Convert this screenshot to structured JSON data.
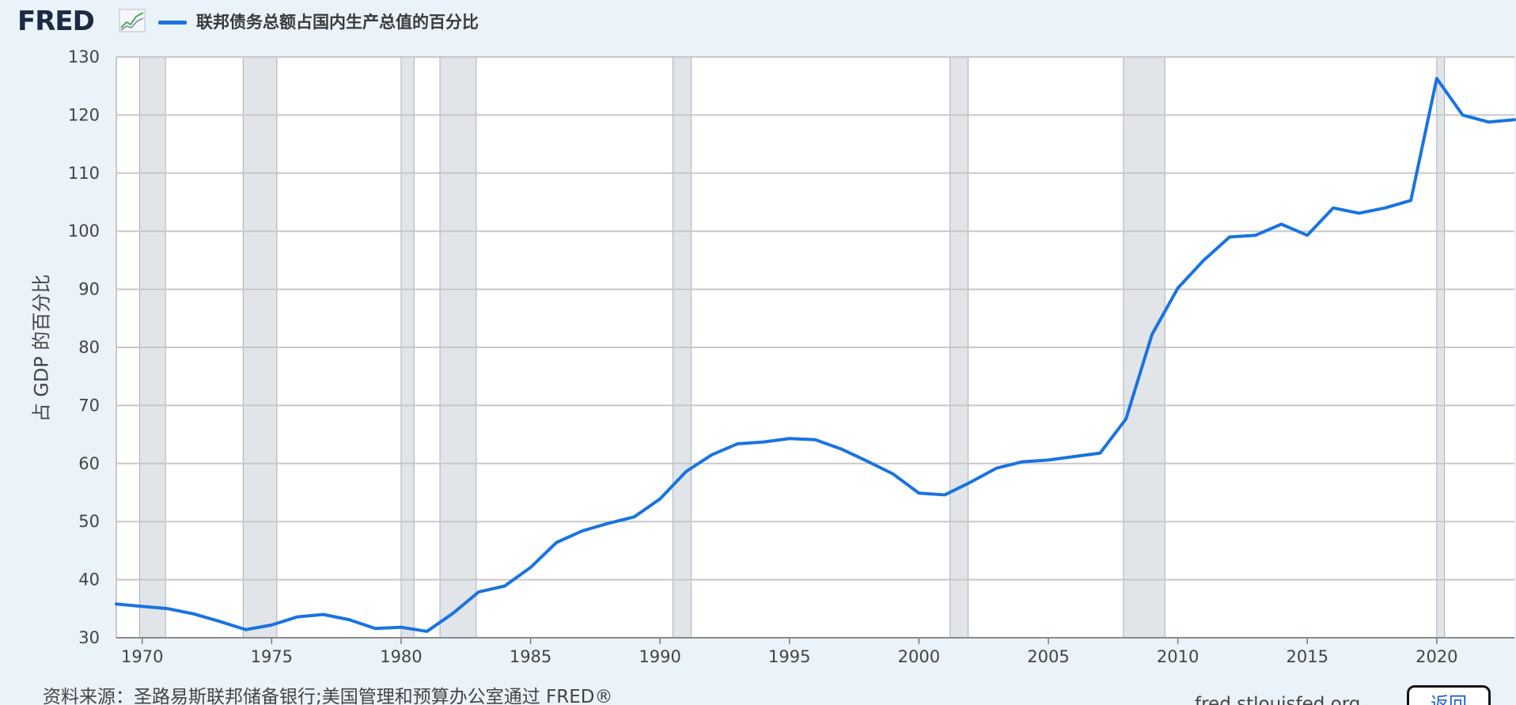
{
  "header": {
    "logo_text": "FRED",
    "logo_mark_icon": "line-chart-icon",
    "legend_label": "联邦债务总额占国内生产总值的百分比"
  },
  "footer": {
    "source_text": "资料来源：圣路易斯联邦储备银行;美国管理和预算办公室通过 FRED®",
    "site_text": "fred.stlouisfed.org",
    "back_button_label": "返回"
  },
  "colors": {
    "line": "#1a73e0",
    "recession": "#e1e5ea",
    "background": "#eaf2fa",
    "plot_bg": "#ffffff",
    "grid": "#c8c8c8"
  },
  "chart_data": {
    "type": "line",
    "ylabel": "占 GDP 的百分比",
    "xlim": [
      1969,
      2023.0
    ],
    "ylim": [
      30,
      130
    ],
    "yticks": [
      30,
      40,
      50,
      60,
      70,
      80,
      90,
      100,
      110,
      120,
      130
    ],
    "xticks": [
      1970,
      1975,
      1980,
      1985,
      1990,
      1995,
      2000,
      2005,
      2010,
      2015,
      2020
    ],
    "grid": true,
    "recessions": [
      [
        1969.9,
        1970.9
      ],
      [
        1973.9,
        1975.2
      ],
      [
        1980.0,
        1980.5
      ],
      [
        1981.5,
        1982.9
      ],
      [
        1990.5,
        1991.2
      ],
      [
        2001.2,
        2001.9
      ],
      [
        2007.9,
        2009.5
      ],
      [
        2020.0,
        2020.3
      ]
    ],
    "series": [
      {
        "name": "联邦债务总额占国内生产总值的百分比",
        "x": [
          1969,
          1970,
          1971,
          1972,
          1973,
          1974,
          1975,
          1976,
          1977,
          1978,
          1979,
          1980,
          1981,
          1982,
          1983,
          1984,
          1985,
          1986,
          1987,
          1988,
          1989,
          1990,
          1991,
          1992,
          1993,
          1994,
          1995,
          1996,
          1997,
          1998,
          1999,
          2000,
          2001,
          2002,
          2003,
          2004,
          2005,
          2006,
          2007,
          2008,
          2009,
          2010,
          2011,
          2012,
          2013,
          2014,
          2015,
          2016,
          2017,
          2018,
          2019,
          2020,
          2021,
          2022,
          2023
        ],
        "values": [
          35.8,
          35.4,
          35.0,
          34.1,
          32.8,
          31.4,
          32.2,
          33.6,
          34.0,
          33.1,
          31.6,
          31.8,
          31.1,
          34.2,
          37.9,
          38.9,
          42.1,
          46.4,
          48.4,
          49.7,
          50.8,
          53.9,
          58.6,
          61.5,
          63.4,
          63.7,
          64.3,
          64.1,
          62.5,
          60.4,
          58.2,
          54.9,
          54.6,
          56.8,
          59.2,
          60.3,
          60.6,
          61.2,
          61.8,
          67.7,
          82.2,
          90.2,
          95.0,
          99.0,
          99.3,
          101.2,
          99.3,
          104.0,
          103.1,
          104.0,
          105.3,
          126.3,
          120.0,
          118.8,
          119.2
        ]
      }
    ]
  }
}
